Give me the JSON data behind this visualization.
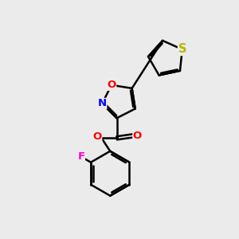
{
  "bg_color": "#ebebeb",
  "bond_color": "#000000",
  "bond_width": 1.8,
  "atom_colors": {
    "S": "#b8b800",
    "O": "#ff0000",
    "N": "#0000ff",
    "F": "#ff00cc",
    "C": "#000000"
  },
  "font_size": 9.5,
  "fig_bg": "#ebebeb"
}
